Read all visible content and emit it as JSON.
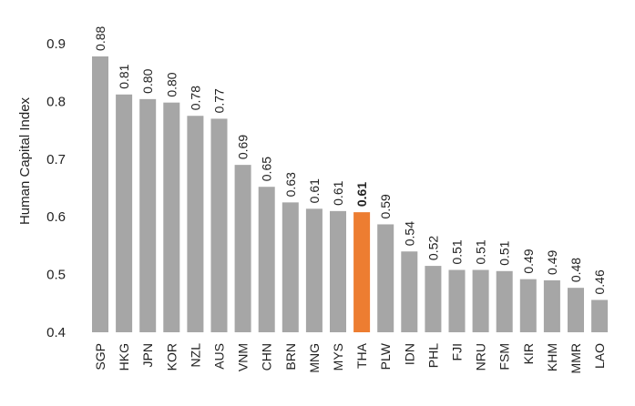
{
  "chart_data": {
    "type": "bar",
    "ylabel": "Human Capital Index",
    "ylim": [
      0.4,
      0.9
    ],
    "yticks": [
      "0.4",
      "0.5",
      "0.6",
      "0.7",
      "0.8",
      "0.9"
    ],
    "categories": [
      "SGP",
      "HKG",
      "JPN",
      "KOR",
      "NZL",
      "AUS",
      "VNM",
      "CHN",
      "BRN",
      "MNG",
      "MYS",
      "THA",
      "PLW",
      "IDN",
      "PHL",
      "FJI",
      "NRU",
      "FSM",
      "KIR",
      "KHM",
      "MMR",
      "LAO"
    ],
    "values": [
      0.88,
      0.81,
      0.8,
      0.8,
      0.78,
      0.77,
      0.69,
      0.65,
      0.63,
      0.61,
      0.61,
      0.61,
      0.59,
      0.54,
      0.52,
      0.51,
      0.51,
      0.51,
      0.49,
      0.49,
      0.48,
      0.46
    ],
    "value_labels": [
      "0.88",
      "0.81",
      "0.80",
      "0.80",
      "0.78",
      "0.77",
      "0.69",
      "0.65",
      "0.63",
      "0.61",
      "0.61",
      "0.61",
      "0.59",
      "0.54",
      "0.52",
      "0.51",
      "0.51",
      "0.51",
      "0.49",
      "0.49",
      "0.48",
      "0.46"
    ],
    "bar_heights": [
      0.878,
      0.812,
      0.804,
      0.798,
      0.775,
      0.77,
      0.69,
      0.652,
      0.625,
      0.614,
      0.61,
      0.608,
      0.587,
      0.54,
      0.515,
      0.508,
      0.508,
      0.506,
      0.492,
      0.49,
      0.477,
      0.456
    ],
    "highlight": "THA",
    "colors": {
      "bar": "#a6a6a6",
      "highlight": "#ed7d31"
    },
    "grid": false,
    "legend": "none"
  }
}
